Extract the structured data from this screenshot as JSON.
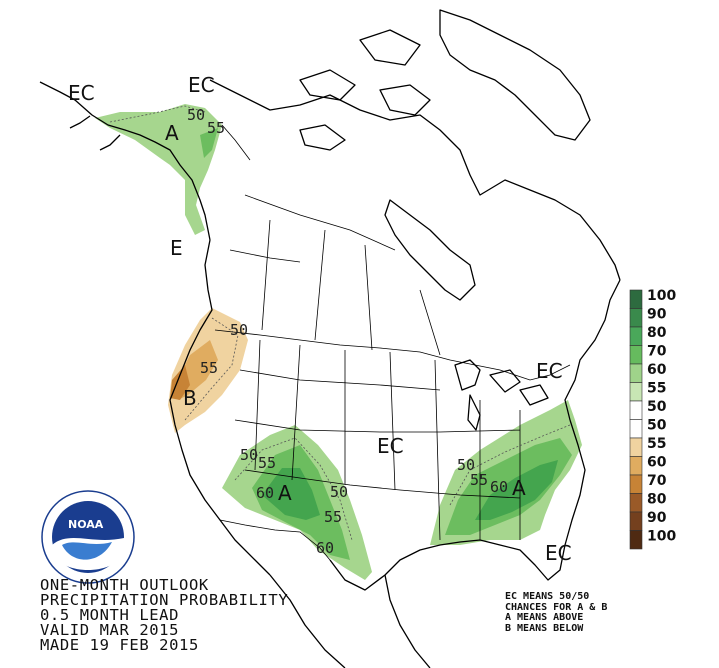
{
  "outlook": {
    "line1": "ONE-MONTH OUTLOOK",
    "line2": "PRECIPITATION PROBABILITY",
    "line3": "0.5 MONTH LEAD",
    "line4": "VALID MAR 2015",
    "line5": "MADE 19 FEB 2015"
  },
  "notes": {
    "line1": "EC MEANS 50/50",
    "line2": "CHANCES FOR A & B",
    "line3": "A MEANS ABOVE",
    "line4": "B MEANS BELOW"
  },
  "logo": {
    "text": "NOAA"
  },
  "map_labels": {
    "ec_alaska_w": "EC",
    "ec_alaska_n": "EC",
    "ec_bc": "E",
    "ec_central": "EC",
    "ec_northeast": "EC",
    "ec_florida": "EC",
    "a_alaska": "A",
    "a_southwest": "A",
    "a_southeast": "A",
    "b_westcoast": "B",
    "c50_ak": "50",
    "c55_ak": "55",
    "c50_wc": "50",
    "c55_wc": "55",
    "c50_sw1": "50",
    "c55_sw1": "55",
    "c60_sw": "60",
    "c50_sw2": "50",
    "c55_sw2": "55",
    "c60_sw2": "60",
    "c50_se": "50",
    "c55_se": "55",
    "c60_se": "60"
  },
  "colorbar": {
    "labels": [
      "100",
      "90",
      "80",
      "70",
      "60",
      "55",
      "50",
      "50",
      "55",
      "60",
      "70",
      "80",
      "90",
      "100"
    ],
    "colors": [
      "#2d6b3f",
      "#3a8a4c",
      "#4aa85a",
      "#66bb5e",
      "#9fd38a",
      "#c8e6b4",
      "#ffffff",
      "#ffffff",
      "#f0d3a0",
      "#e0ac60",
      "#c78336",
      "#9a5a28",
      "#74401e",
      "#4f2a12"
    ]
  }
}
